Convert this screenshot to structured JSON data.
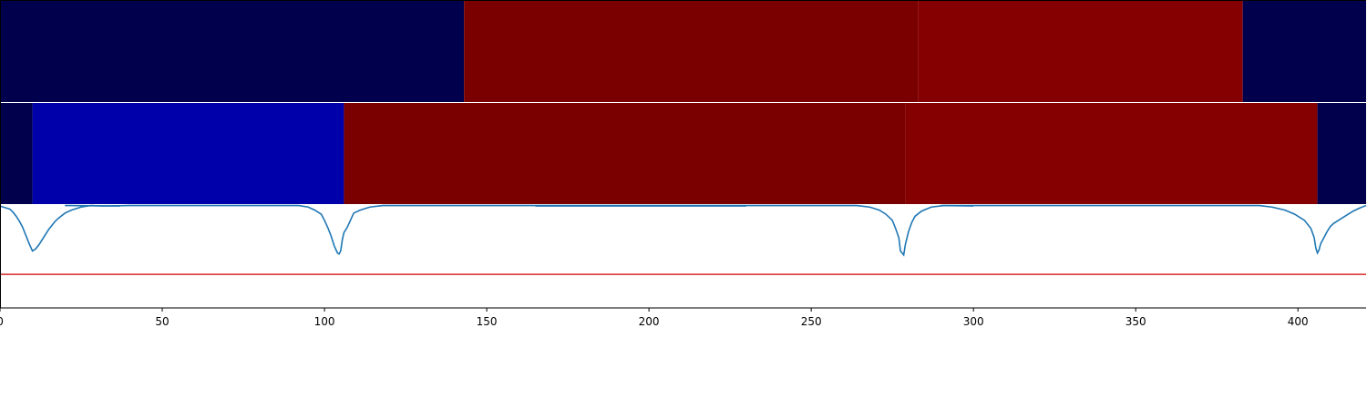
{
  "chart_data": {
    "type": "heatmap",
    "title": "",
    "xlabel": "",
    "ylabel": "",
    "xlim": [
      0,
      421
    ],
    "x_ticks": [
      0,
      50,
      100,
      150,
      200,
      250,
      300,
      350,
      400
    ],
    "x_tick_labels": [
      "0",
      "50",
      "100",
      "150",
      "200",
      "250",
      "300",
      "350",
      "400"
    ],
    "grid": false,
    "legend": "none",
    "segment_rows": [
      {
        "segments": [
          {
            "start": 0,
            "end": 143,
            "color": "#00004c"
          },
          {
            "start": 143,
            "end": 283,
            "color": "#7a0000"
          },
          {
            "start": 283,
            "end": 383,
            "color": "#850000"
          },
          {
            "start": 383,
            "end": 421,
            "color": "#00004c"
          }
        ]
      },
      {
        "segments": [
          {
            "start": 0,
            "end": 10,
            "color": "#00004c"
          },
          {
            "start": 10,
            "end": 106,
            "color": "#0000aa"
          },
          {
            "start": 106,
            "end": 279,
            "color": "#7a0000"
          },
          {
            "start": 279,
            "end": 406,
            "color": "#850000"
          },
          {
            "start": 406,
            "end": 421,
            "color": "#00004c"
          }
        ]
      }
    ],
    "signal": {
      "ylim": [
        0,
        1
      ],
      "threshold": 0.32,
      "line_color": "#1f77b4",
      "threshold_color": "#d62728",
      "dip_points": [
        [
          0,
          0.99
        ],
        [
          1,
          0.98
        ],
        [
          2,
          0.97
        ],
        [
          3,
          0.96
        ],
        [
          4,
          0.93
        ],
        [
          5,
          0.89
        ],
        [
          6,
          0.84
        ],
        [
          7,
          0.78
        ],
        [
          8,
          0.7
        ],
        [
          9,
          0.62
        ],
        [
          10,
          0.55
        ],
        [
          11,
          0.57
        ],
        [
          12,
          0.61
        ],
        [
          13,
          0.66
        ],
        [
          14,
          0.71
        ],
        [
          15,
          0.76
        ],
        [
          16,
          0.8
        ],
        [
          17,
          0.84
        ],
        [
          18,
          0.87
        ],
        [
          20,
          0.92
        ],
        [
          22,
          0.95
        ],
        [
          25,
          0.98
        ],
        [
          28,
          0.995
        ],
        [
          32,
          0.99
        ],
        [
          40,
          0.995
        ],
        [
          92,
          0.995
        ],
        [
          95,
          0.98
        ],
        [
          97,
          0.95
        ],
        [
          99,
          0.91
        ],
        [
          100,
          0.85
        ],
        [
          101,
          0.78
        ],
        [
          102,
          0.7
        ],
        [
          103,
          0.6
        ],
        [
          104,
          0.53
        ],
        [
          104.5,
          0.52
        ],
        [
          105,
          0.55
        ],
        [
          105.5,
          0.66
        ],
        [
          106,
          0.73
        ],
        [
          107,
          0.78
        ],
        [
          108,
          0.85
        ],
        [
          109,
          0.92
        ],
        [
          111,
          0.95
        ],
        [
          114,
          0.98
        ],
        [
          118,
          0.995
        ],
        [
          264,
          0.995
        ],
        [
          268,
          0.98
        ],
        [
          271,
          0.95
        ],
        [
          273,
          0.91
        ],
        [
          275,
          0.85
        ],
        [
          276,
          0.77
        ],
        [
          277,
          0.68
        ],
        [
          277.5,
          0.55
        ],
        [
          278,
          0.53
        ],
        [
          278.5,
          0.51
        ],
        [
          279,
          0.61
        ],
        [
          280,
          0.74
        ],
        [
          281,
          0.83
        ],
        [
          282,
          0.89
        ],
        [
          284,
          0.94
        ],
        [
          287,
          0.98
        ],
        [
          291,
          0.995
        ],
        [
          388,
          0.995
        ],
        [
          392,
          0.98
        ],
        [
          396,
          0.95
        ],
        [
          399,
          0.91
        ],
        [
          402,
          0.85
        ],
        [
          404,
          0.77
        ],
        [
          405,
          0.68
        ],
        [
          405.5,
          0.58
        ],
        [
          406,
          0.53
        ],
        [
          406.5,
          0.56
        ],
        [
          407,
          0.62
        ],
        [
          408,
          0.68
        ],
        [
          409,
          0.74
        ],
        [
          410,
          0.79
        ],
        [
          411,
          0.82
        ],
        [
          413,
          0.86
        ],
        [
          415,
          0.9
        ],
        [
          417,
          0.94
        ],
        [
          419,
          0.97
        ],
        [
          421,
          0.995
        ]
      ],
      "flat_segments": [
        [
          [
            20,
            0.995
          ],
          [
            37,
            0.99
          ]
        ],
        [
          [
            165,
            0.99
          ],
          [
            230,
            0.99
          ]
        ],
        [
          [
            290,
            0.995
          ],
          [
            300,
            0.99
          ]
        ]
      ]
    }
  }
}
